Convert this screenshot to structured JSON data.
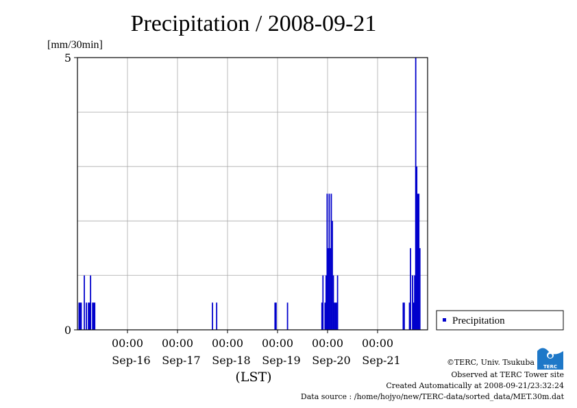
{
  "chart_data": {
    "type": "bar",
    "title": "Precipitation / 2008-09-21",
    "ylabel": "[mm/30min]",
    "xlabel": "(LST)",
    "ylim": [
      0,
      5
    ],
    "y_ticks": [
      "0",
      "5"
    ],
    "x_ticks": [
      {
        "time": "00:00",
        "date": "Sep-16"
      },
      {
        "time": "00:00",
        "date": "Sep-17"
      },
      {
        "time": "00:00",
        "date": "Sep-18"
      },
      {
        "time": "00:00",
        "date": "Sep-19"
      },
      {
        "time": "00:00",
        "date": "Sep-20"
      },
      {
        "time": "00:00",
        "date": "Sep-21"
      }
    ],
    "grid": true,
    "legend_position": "right",
    "series": [
      {
        "name": "Precipitation",
        "color": "#0000cc",
        "points": [
          {
            "t": "2008-09-15 00:30",
            "v": 0.5
          },
          {
            "t": "2008-09-15 01:00",
            "v": 0.5
          },
          {
            "t": "2008-09-15 01:30",
            "v": 0.5
          },
          {
            "t": "2008-09-15 03:00",
            "v": 1.0
          },
          {
            "t": "2008-09-15 04:00",
            "v": 0.5
          },
          {
            "t": "2008-09-15 05:00",
            "v": 0.5
          },
          {
            "t": "2008-09-15 05:30",
            "v": 0.5
          },
          {
            "t": "2008-09-15 06:00",
            "v": 1.0
          },
          {
            "t": "2008-09-15 07:00",
            "v": 0.5
          },
          {
            "t": "2008-09-15 07:30",
            "v": 0.5
          },
          {
            "t": "2008-09-15 08:00",
            "v": 0.5
          },
          {
            "t": "2008-09-17 16:30",
            "v": 0.5
          },
          {
            "t": "2008-09-17 18:30",
            "v": 0.5
          },
          {
            "t": "2008-09-18 22:30",
            "v": 0.5
          },
          {
            "t": "2008-09-18 23:00",
            "v": 0.5
          },
          {
            "t": "2008-09-19 04:30",
            "v": 0.5
          },
          {
            "t": "2008-09-19 21:00",
            "v": 0.5
          },
          {
            "t": "2008-09-19 21:30",
            "v": 1.0
          },
          {
            "t": "2008-09-19 22:30",
            "v": 0.5
          },
          {
            "t": "2008-09-19 23:00",
            "v": 1.0
          },
          {
            "t": "2008-09-19 23:30",
            "v": 2.5
          },
          {
            "t": "2008-09-20 00:00",
            "v": 1.5
          },
          {
            "t": "2008-09-20 00:30",
            "v": 2.5
          },
          {
            "t": "2008-09-20 01:00",
            "v": 1.5
          },
          {
            "t": "2008-09-20 01:30",
            "v": 2.5
          },
          {
            "t": "2008-09-20 02:00",
            "v": 2.0
          },
          {
            "t": "2008-09-20 02:30",
            "v": 1.0
          },
          {
            "t": "2008-09-20 03:00",
            "v": 0.5
          },
          {
            "t": "2008-09-20 03:30",
            "v": 0.5
          },
          {
            "t": "2008-09-20 04:00",
            "v": 0.5
          },
          {
            "t": "2008-09-20 04:30",
            "v": 1.0
          },
          {
            "t": "2008-09-21 12:00",
            "v": 0.5
          },
          {
            "t": "2008-09-21 12:30",
            "v": 0.5
          },
          {
            "t": "2008-09-21 15:00",
            "v": 0.5
          },
          {
            "t": "2008-09-21 15:30",
            "v": 1.5
          },
          {
            "t": "2008-09-21 16:30",
            "v": 1.0
          },
          {
            "t": "2008-09-21 17:00",
            "v": 0.5
          },
          {
            "t": "2008-09-21 17:30",
            "v": 1.0
          },
          {
            "t": "2008-09-21 18:00",
            "v": 5.0
          },
          {
            "t": "2008-09-21 18:30",
            "v": 3.0
          },
          {
            "t": "2008-09-21 19:00",
            "v": 2.5
          },
          {
            "t": "2008-09-21 19:30",
            "v": 2.5
          },
          {
            "t": "2008-09-21 20:00",
            "v": 1.5
          }
        ]
      }
    ]
  },
  "footer": {
    "copyright": "©TERC, Univ. Tsukuba",
    "observed": "Observed at TERC Tower site",
    "created": "Created Automatically at 2008-09-21/23:32:24",
    "source": "Data source : /home/hojyo/new/TERC-data/sorted_data/MET.30m.dat"
  },
  "logo": {
    "text": "TERC",
    "color": "#1e78c8"
  }
}
